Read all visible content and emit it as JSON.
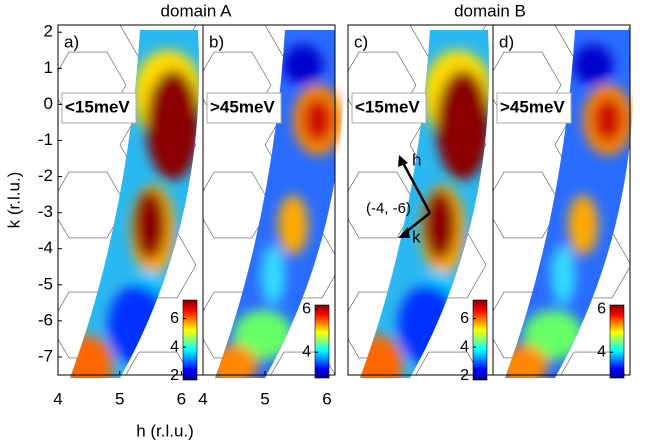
{
  "figure": {
    "titles": [
      "domain A",
      "domain B"
    ],
    "ylabel": "k (r.l.u.)",
    "xlabel": "h (r.l.u.)"
  },
  "chart_data": [
    {
      "type": "heatmap",
      "label": "a)",
      "energy": "<15meV",
      "xlim": [
        4,
        6.35
      ],
      "ylim": [
        -7.5,
        2.2
      ],
      "xticks": [
        4,
        5,
        6
      ],
      "yticks": [
        2,
        1,
        0,
        -1,
        -2,
        -3,
        -4,
        -5,
        -6,
        -7
      ],
      "colorbar": {
        "clim": [
          1.7,
          7.3
        ],
        "ticks": [
          2,
          4,
          6
        ]
      }
    },
    {
      "type": "heatmap",
      "label": "b)",
      "energy": ">45meV",
      "xlim": [
        4,
        6.13
      ],
      "ylim": [
        -7.5,
        2.2
      ],
      "xticks": [
        4,
        5,
        6
      ],
      "colorbar": {
        "clim": [
          2.8,
          6.2
        ],
        "ticks": [
          4,
          6
        ]
      }
    },
    {
      "type": "heatmap",
      "label": "c)",
      "energy": "<15meV",
      "ylim": [
        -7.5,
        2.2
      ],
      "colorbar": {
        "clim": [
          1.7,
          7.3
        ],
        "ticks": [
          2,
          4,
          6
        ]
      },
      "annotations": [
        "h",
        "k",
        "(-4, -6)"
      ]
    },
    {
      "type": "heatmap",
      "label": "d)",
      "energy": ">45meV",
      "ylim": [
        -7.5,
        2.2
      ],
      "colorbar": {
        "clim": [
          2.8,
          6.2
        ],
        "ticks": [
          4,
          6
        ]
      }
    }
  ]
}
